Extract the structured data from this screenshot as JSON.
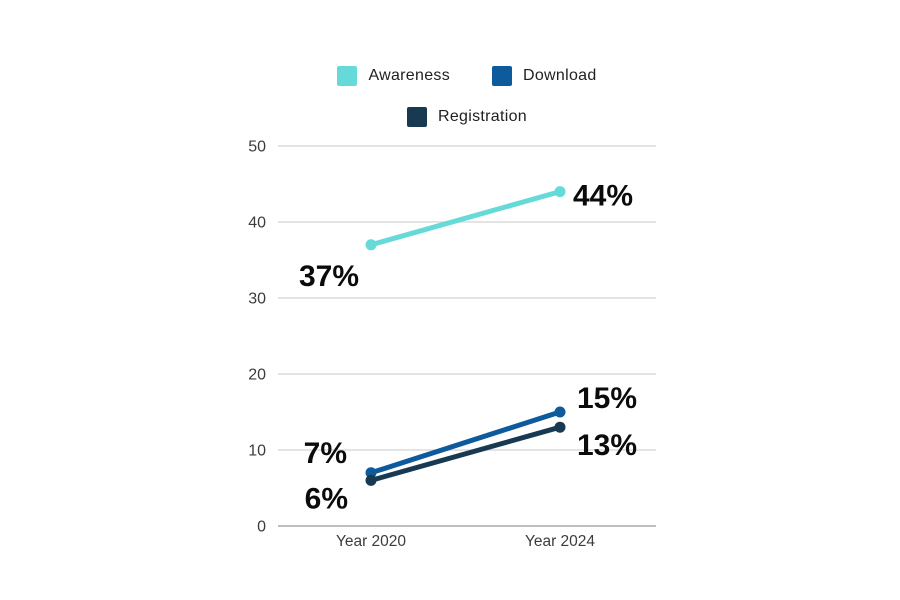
{
  "chart_data": {
    "type": "line",
    "categories": [
      "Year 2020",
      "Year 2024"
    ],
    "series": [
      {
        "name": "Awareness",
        "color": "#66D9D9",
        "values": [
          37,
          44
        ],
        "point_labels": [
          "37%",
          "44%"
        ]
      },
      {
        "name": "Download",
        "color": "#0D5A9C",
        "values": [
          7,
          15
        ],
        "point_labels": [
          "7%",
          "15%"
        ]
      },
      {
        "name": "Registration",
        "color": "#173A52",
        "values": [
          6,
          13
        ],
        "point_labels": [
          "6%",
          "13%"
        ]
      }
    ],
    "title": "",
    "xlabel": "",
    "ylabel": "",
    "ylim": [
      0,
      50
    ],
    "yticks": [
      0,
      10,
      20,
      30,
      40,
      50
    ],
    "grid": true,
    "legend_position": "top"
  },
  "colors": {
    "background": "#FFFFFF",
    "gridline": "#DCDCDC",
    "axis_line": "#A9A9A9",
    "tick_text": "#3C3C3C",
    "data_label_text": "#0B0B0B",
    "legend_text": "#212121"
  }
}
